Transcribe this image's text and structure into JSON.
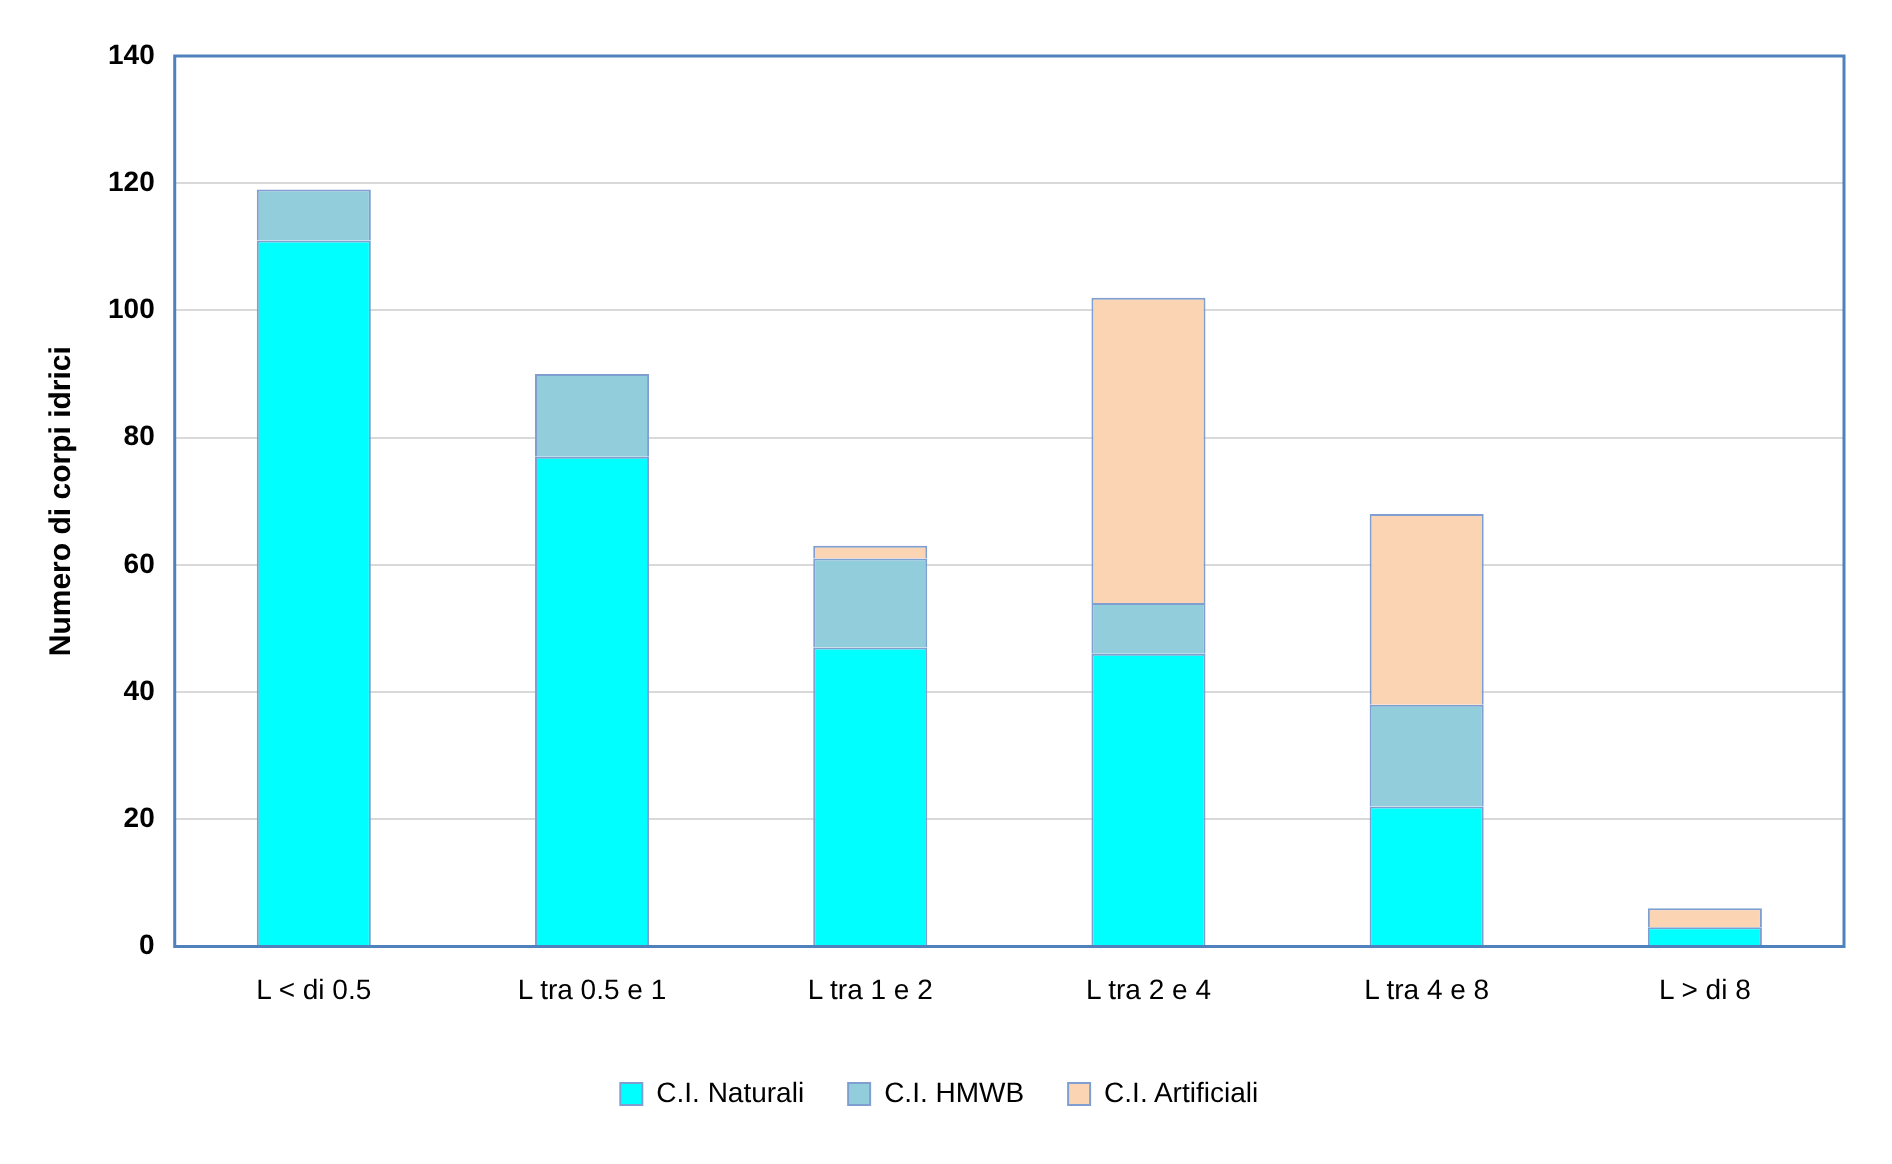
{
  "chart_data": {
    "type": "bar",
    "stacked": true,
    "ylabel": "Numero di corpi idrici",
    "categories": [
      "L < di 0.5",
      "L tra 0.5 e 1",
      "L tra 1 e 2",
      "L tra 2 e 4",
      "L tra 4 e 8",
      "L > di 8"
    ],
    "series": [
      {
        "name": "C.I. Naturali",
        "color": "#00ffff",
        "values": [
          111,
          77,
          47,
          46,
          22,
          3
        ]
      },
      {
        "name": "C.I. HMWB",
        "color": "#92cddc",
        "values": [
          8,
          13,
          14,
          8,
          16,
          0
        ]
      },
      {
        "name": "C.I. Artificiali",
        "color": "#fbd4b4",
        "values": [
          0,
          0,
          2,
          48,
          30,
          3
        ]
      }
    ],
    "ylim": [
      0,
      140
    ],
    "yticks": [
      0,
      20,
      40,
      60,
      80,
      100,
      120,
      140
    ],
    "grid": "y",
    "legend": "bottom"
  }
}
